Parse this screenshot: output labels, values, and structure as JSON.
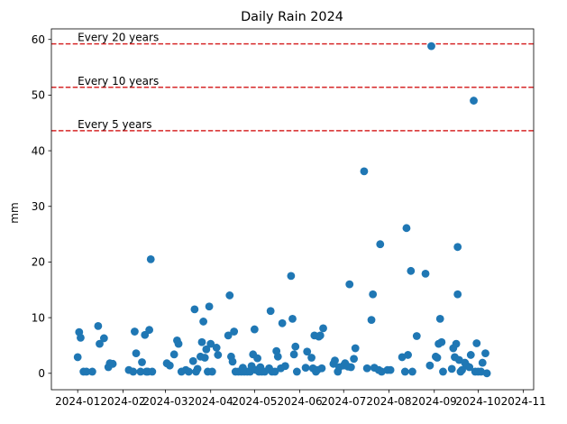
{
  "chart_data": {
    "type": "scatter",
    "title": "Daily Rain 2024",
    "xlabel": "",
    "ylabel": "mm",
    "x_type": "date",
    "xlim": [
      "2023-12-14",
      "2024-11-08"
    ],
    "ylim": [
      -2.95,
      61.9
    ],
    "xticks": [
      "2024-01",
      "2024-02",
      "2024-03",
      "2024-04",
      "2024-05",
      "2024-06",
      "2024-07",
      "2024-08",
      "2024-09",
      "2024-10",
      "2024-11"
    ],
    "yticks": [
      0,
      10,
      20,
      30,
      40,
      50,
      60
    ],
    "grid": false,
    "marker_color": "#1f77b4",
    "reference_lines": [
      {
        "label": "Every 20 years",
        "y": 59.2,
        "color": "#d62728",
        "style": "dashed"
      },
      {
        "label": "Every 10 years",
        "y": 51.4,
        "color": "#d62728",
        "style": "dashed"
      },
      {
        "label": "Every 5 years",
        "y": 43.6,
        "color": "#d62728",
        "style": "dashed"
      }
    ],
    "points": [
      [
        "2024-01-01",
        2.9
      ],
      [
        "2024-01-02",
        7.4
      ],
      [
        "2024-01-03",
        6.4
      ],
      [
        "2024-01-05",
        0.3
      ],
      [
        "2024-01-07",
        0.3
      ],
      [
        "2024-01-11",
        0.3
      ],
      [
        "2024-01-15",
        8.5
      ],
      [
        "2024-01-16",
        5.3
      ],
      [
        "2024-01-19",
        6.3
      ],
      [
        "2024-01-22",
        1.1
      ],
      [
        "2024-01-23",
        1.8
      ],
      [
        "2024-01-25",
        1.7
      ],
      [
        "2024-02-05",
        0.6
      ],
      [
        "2024-02-08",
        0.3
      ],
      [
        "2024-02-09",
        7.5
      ],
      [
        "2024-02-10",
        3.6
      ],
      [
        "2024-02-13",
        0.3
      ],
      [
        "2024-02-14",
        2.0
      ],
      [
        "2024-02-16",
        6.9
      ],
      [
        "2024-02-17",
        0.3
      ],
      [
        "2024-02-18",
        0.3
      ],
      [
        "2024-02-19",
        7.8
      ],
      [
        "2024-02-20",
        20.5
      ],
      [
        "2024-02-21",
        0.3
      ],
      [
        "2024-03-02",
        1.8
      ],
      [
        "2024-03-04",
        1.4
      ],
      [
        "2024-03-07",
        3.4
      ],
      [
        "2024-03-09",
        5.9
      ],
      [
        "2024-03-10",
        5.3
      ],
      [
        "2024-03-12",
        0.3
      ],
      [
        "2024-03-15",
        0.6
      ],
      [
        "2024-03-17",
        0.3
      ],
      [
        "2024-03-20",
        2.2
      ],
      [
        "2024-03-21",
        11.5
      ],
      [
        "2024-03-22",
        0.3
      ],
      [
        "2024-03-23",
        0.8
      ],
      [
        "2024-03-25",
        3.0
      ],
      [
        "2024-03-26",
        5.6
      ],
      [
        "2024-03-27",
        9.3
      ],
      [
        "2024-03-28",
        2.8
      ],
      [
        "2024-03-29",
        4.3
      ],
      [
        "2024-03-30",
        0.3
      ],
      [
        "2024-03-31",
        12.0
      ],
      [
        "2024-04-01",
        5.3
      ],
      [
        "2024-04-02",
        0.3
      ],
      [
        "2024-04-05",
        4.6
      ],
      [
        "2024-04-06",
        3.3
      ],
      [
        "2024-04-13",
        6.8
      ],
      [
        "2024-04-14",
        14.0
      ],
      [
        "2024-04-15",
        3.0
      ],
      [
        "2024-04-16",
        2.1
      ],
      [
        "2024-04-17",
        7.5
      ],
      [
        "2024-04-18",
        0.3
      ],
      [
        "2024-04-20",
        0.3
      ],
      [
        "2024-04-22",
        0.3
      ],
      [
        "2024-04-23",
        1.0
      ],
      [
        "2024-04-24",
        0.3
      ],
      [
        "2024-04-26",
        0.3
      ],
      [
        "2024-04-28",
        0.3
      ],
      [
        "2024-04-29",
        1.3
      ],
      [
        "2024-04-30",
        3.4
      ],
      [
        "2024-05-01",
        7.9
      ],
      [
        "2024-05-02",
        0.6
      ],
      [
        "2024-05-03",
        2.7
      ],
      [
        "2024-05-04",
        0.3
      ],
      [
        "2024-05-05",
        1.1
      ],
      [
        "2024-05-06",
        0.3
      ],
      [
        "2024-05-08",
        0.3
      ],
      [
        "2024-05-11",
        0.9
      ],
      [
        "2024-05-12",
        11.2
      ],
      [
        "2024-05-13",
        0.3
      ],
      [
        "2024-05-15",
        0.3
      ],
      [
        "2024-05-16",
        4.0
      ],
      [
        "2024-05-17",
        3.0
      ],
      [
        "2024-05-19",
        0.9
      ],
      [
        "2024-05-20",
        9.0
      ],
      [
        "2024-05-22",
        1.3
      ],
      [
        "2024-05-26",
        17.5
      ],
      [
        "2024-05-27",
        9.8
      ],
      [
        "2024-05-28",
        3.4
      ],
      [
        "2024-05-29",
        4.8
      ],
      [
        "2024-05-30",
        0.3
      ],
      [
        "2024-06-05",
        1.0
      ],
      [
        "2024-06-06",
        3.9
      ],
      [
        "2024-06-09",
        2.8
      ],
      [
        "2024-06-10",
        0.9
      ],
      [
        "2024-06-11",
        6.8
      ],
      [
        "2024-06-12",
        0.3
      ],
      [
        "2024-06-13",
        0.6
      ],
      [
        "2024-06-14",
        6.6
      ],
      [
        "2024-06-15",
        6.8
      ],
      [
        "2024-06-16",
        0.9
      ],
      [
        "2024-06-17",
        8.1
      ],
      [
        "2024-06-24",
        1.7
      ],
      [
        "2024-06-25",
        2.3
      ],
      [
        "2024-06-27",
        0.3
      ],
      [
        "2024-06-28",
        1.1
      ],
      [
        "2024-07-01",
        1.4
      ],
      [
        "2024-07-02",
        1.8
      ],
      [
        "2024-07-04",
        1.2
      ],
      [
        "2024-07-05",
        16.0
      ],
      [
        "2024-07-06",
        1.1
      ],
      [
        "2024-07-08",
        2.6
      ],
      [
        "2024-07-09",
        4.5
      ],
      [
        "2024-07-15",
        36.3
      ],
      [
        "2024-07-17",
        0.9
      ],
      [
        "2024-07-20",
        9.6
      ],
      [
        "2024-07-21",
        14.2
      ],
      [
        "2024-07-22",
        1.0
      ],
      [
        "2024-07-25",
        0.6
      ],
      [
        "2024-07-26",
        23.2
      ],
      [
        "2024-07-27",
        0.3
      ],
      [
        "2024-07-31",
        0.6
      ],
      [
        "2024-08-02",
        0.6
      ],
      [
        "2024-08-10",
        2.9
      ],
      [
        "2024-08-12",
        0.3
      ],
      [
        "2024-08-13",
        26.1
      ],
      [
        "2024-08-14",
        3.3
      ],
      [
        "2024-08-16",
        18.4
      ],
      [
        "2024-08-17",
        0.3
      ],
      [
        "2024-08-20",
        6.7
      ],
      [
        "2024-08-26",
        17.9
      ],
      [
        "2024-08-29",
        1.4
      ],
      [
        "2024-08-30",
        58.8
      ],
      [
        "2024-09-02",
        3.0
      ],
      [
        "2024-09-03",
        2.8
      ],
      [
        "2024-09-04",
        5.3
      ],
      [
        "2024-09-05",
        9.8
      ],
      [
        "2024-09-06",
        5.6
      ],
      [
        "2024-09-07",
        0.3
      ],
      [
        "2024-09-13",
        0.8
      ],
      [
        "2024-09-14",
        4.5
      ],
      [
        "2024-09-15",
        2.9
      ],
      [
        "2024-09-16",
        5.3
      ],
      [
        "2024-09-17",
        14.2
      ],
      [
        "2024-09-17",
        22.7
      ],
      [
        "2024-09-18",
        2.4
      ],
      [
        "2024-09-19",
        0.3
      ],
      [
        "2024-09-20",
        0.6
      ],
      [
        "2024-09-22",
        1.9
      ],
      [
        "2024-09-23",
        1.4
      ],
      [
        "2024-09-25",
        1.1
      ],
      [
        "2024-09-26",
        3.3
      ],
      [
        "2024-09-28",
        49.0
      ],
      [
        "2024-09-29",
        0.3
      ],
      [
        "2024-09-30",
        5.4
      ],
      [
        "2024-10-01",
        0.3
      ],
      [
        "2024-10-03",
        0.3
      ],
      [
        "2024-10-04",
        1.9
      ],
      [
        "2024-10-06",
        3.6
      ],
      [
        "2024-10-07",
        0.0
      ]
    ]
  }
}
